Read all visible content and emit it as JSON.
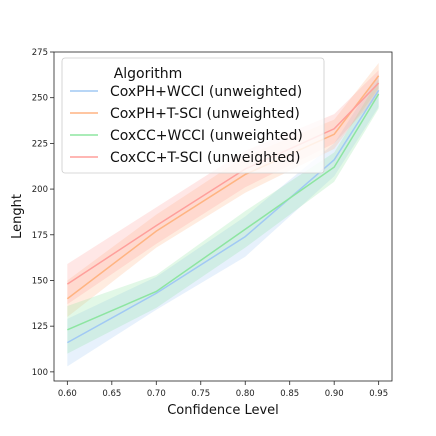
{
  "chart_data": {
    "type": "line",
    "xlabel": "Confidence Level",
    "ylabel": "Lenght",
    "xlim": [
      0.585,
      0.965
    ],
    "ylim": [
      95,
      275
    ],
    "xticks": [
      "0.60",
      "0.65",
      "0.70",
      "0.75",
      "0.80",
      "0.85",
      "0.90",
      "0.95"
    ],
    "yticks": [
      "100",
      "125",
      "150",
      "175",
      "200",
      "225",
      "250",
      "275"
    ],
    "grid": false,
    "legend": {
      "title": "Algorithm",
      "placement": "top-left"
    },
    "x": [
      0.6,
      0.7,
      0.8,
      0.9,
      0.95
    ],
    "series": [
      {
        "name": "CoxPH+WCCI (unweighted)",
        "color": "#a1c9f4",
        "values": [
          116,
          143,
          174,
          216,
          254
        ],
        "lower": [
          103,
          134,
          163,
          207,
          245
        ],
        "upper": [
          129,
          152,
          185,
          225,
          263
        ]
      },
      {
        "name": "CoxPH+T-SCI (unweighted)",
        "color": "#ffb482",
        "values": [
          140,
          177,
          208,
          230,
          262
        ],
        "lower": [
          130,
          168,
          198,
          222,
          255
        ],
        "upper": [
          150,
          186,
          218,
          238,
          269
        ]
      },
      {
        "name": "CoxCC+WCCI (unweighted)",
        "color": "#8de5a1",
        "values": [
          123,
          144,
          178,
          212,
          252
        ],
        "lower": [
          110,
          135,
          168,
          204,
          244
        ],
        "upper": [
          136,
          153,
          188,
          220,
          260
        ]
      },
      {
        "name": "CoxCC+T-SCI (unweighted)",
        "color": "#ff9f9b",
        "values": [
          148,
          180,
          211,
          233,
          258
        ],
        "lower": [
          137,
          170,
          201,
          225,
          251
        ],
        "upper": [
          159,
          190,
          221,
          241,
          265
        ]
      }
    ]
  }
}
